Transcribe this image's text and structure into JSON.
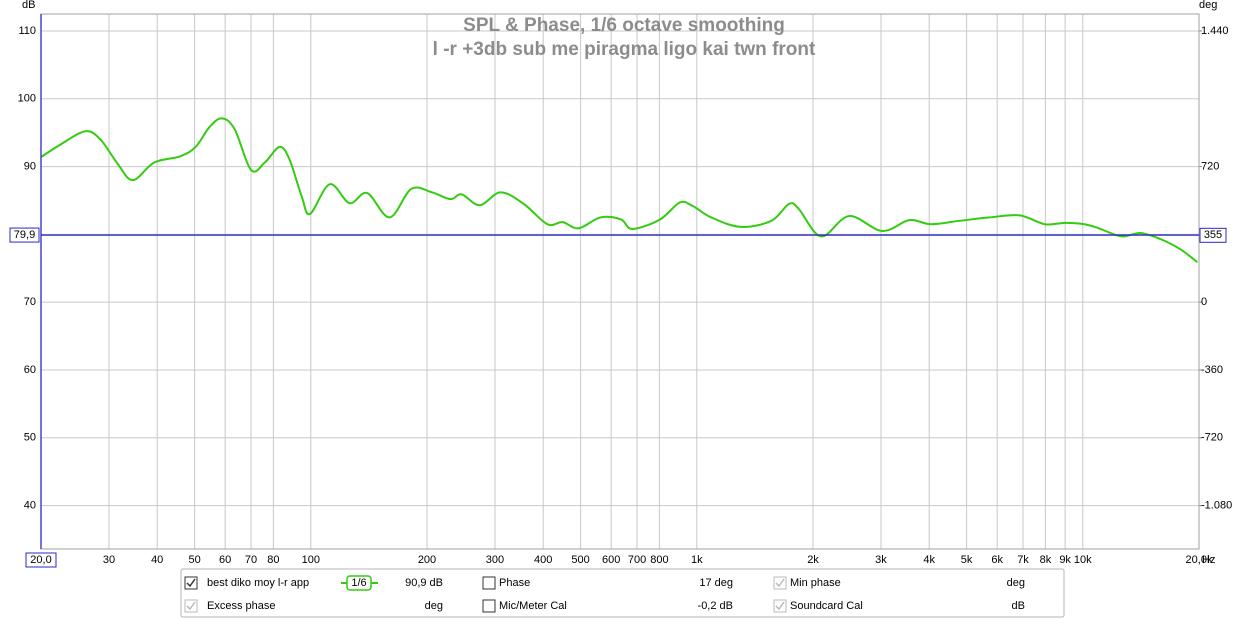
{
  "chart_data": {
    "type": "line",
    "title": "SPL & Phase, 1/6 octave smoothing",
    "subtitle": "l -r +3db sub me piragma ligo kai twn front",
    "y_label": "dB",
    "y2_label": "deg",
    "x_label": "Hz",
    "log_x": true,
    "grid": true,
    "xlim": [
      20,
      20000
    ],
    "ylim": [
      33.6,
      112.5
    ],
    "y2lim": [
      -1310.4,
      1530
    ],
    "xticks": [
      30,
      40,
      50,
      60,
      70,
      80,
      100,
      200,
      300,
      400,
      500,
      600,
      700,
      800,
      {
        "value": 1000,
        "label": "1k"
      },
      {
        "value": 2000,
        "label": "2k"
      },
      {
        "value": 3000,
        "label": "3k"
      },
      {
        "value": 4000,
        "label": "4k"
      },
      {
        "value": 5000,
        "label": "5k"
      },
      {
        "value": 6000,
        "label": "6k"
      },
      {
        "value": 7000,
        "label": "7k"
      },
      {
        "value": 8000,
        "label": "8k"
      },
      {
        "value": 9000,
        "label": "9k"
      },
      {
        "value": 10000,
        "label": "10k"
      },
      {
        "value": 20000,
        "label": "20,0k"
      }
    ],
    "yticks": [
      40,
      50,
      60,
      70,
      80,
      90,
      100,
      110
    ],
    "y2ticks": [
      {
        "value": -1080,
        "label": "-1.080"
      },
      -720,
      -360,
      0,
      720,
      {
        "value": 1440,
        "label": "1.440"
      }
    ],
    "cursor_x": {
      "value": 20,
      "label": "20,0"
    },
    "cursor_y": {
      "value": 79.9,
      "label": "79,9",
      "y2_value": 355,
      "y2_label": "355"
    },
    "cursor_color": "#2828c8",
    "series": [
      {
        "name": "best diko moy l-r app",
        "color": "#33cc11",
        "x": [
          20,
          22.4,
          26,
          28.5,
          31.6,
          34.6,
          39.3,
          45.8,
          50.3,
          54.6,
          58.8,
          63.5,
          70,
          76,
          83,
          88,
          94.7,
          99.5,
          112,
          126,
          140,
          160,
          182,
          206,
          230,
          246,
          274,
          310,
          356,
          410,
          449,
          494,
          563,
          636,
          681,
          803,
          903,
          975,
          1090,
          1300,
          1560,
          1735,
          1840,
          2100,
          2480,
          3020,
          3550,
          4040,
          4790,
          5730,
          6860,
          7970,
          9000,
          10100,
          11000,
          12600,
          14100,
          15900,
          17900,
          19800
        ],
        "values": [
          91.4,
          93.2,
          95.2,
          94,
          90.4,
          88,
          90.6,
          91.5,
          92.9,
          95.8,
          97.1,
          95.5,
          89.5,
          90.6,
          92.9,
          91.1,
          85.6,
          83,
          87.4,
          84.6,
          86.1,
          82.5,
          86.7,
          86.2,
          85.2,
          85.9,
          84.3,
          86.2,
          84.5,
          81.5,
          81.8,
          80.9,
          82.5,
          82.2,
          80.8,
          82.2,
          84.7,
          84.2,
          82.5,
          81.1,
          82,
          84.5,
          83.7,
          79.7,
          82.7,
          80.5,
          82.1,
          81.5,
          82,
          82.5,
          82.8,
          81.5,
          81.7,
          81.5,
          80.9,
          79.7,
          80.2,
          79.3,
          77.8,
          75.9
        ]
      }
    ]
  },
  "traces_panel": {
    "items": [
      {
        "label": "best diko moy l-r app",
        "checked": true,
        "enabled": true,
        "color": "#33cc11",
        "smoothing": "1/6",
        "reading": "90,9 dB"
      },
      {
        "label": "Phase",
        "checked": false,
        "enabled": true,
        "color": "#33cc11",
        "reading": "17 deg"
      },
      {
        "label": "Min phase",
        "checked": true,
        "enabled": false,
        "color": "#a8a8a8",
        "reading": "deg"
      },
      {
        "label": "Excess phase",
        "checked": true,
        "enabled": false,
        "color": "#a8a8a8",
        "reading": "deg"
      },
      {
        "label": "Mic/Meter Cal",
        "checked": false,
        "enabled": true,
        "color": "#000000",
        "reading": "-0,2 dB"
      },
      {
        "label": "Soundcard Cal",
        "checked": true,
        "enabled": false,
        "color": "#a8a8a8",
        "reading": "dB"
      }
    ]
  }
}
